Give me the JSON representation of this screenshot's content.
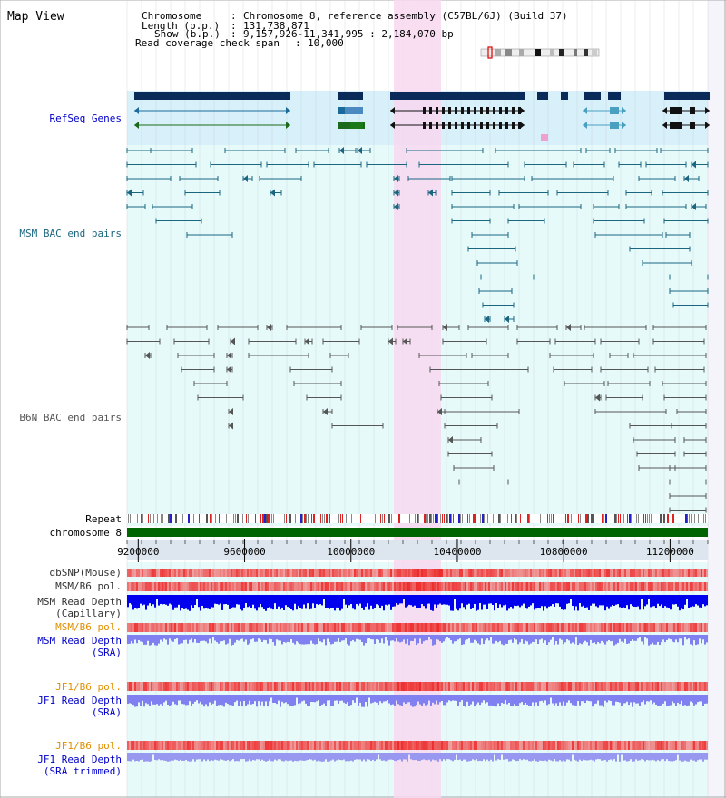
{
  "panel_title": "Map View",
  "header": {
    "lines": [
      {
        "key": "Chromosome",
        "value": "Chromosome 8, reference assembly (C57BL/6J) (Build 37)"
      },
      {
        "key": "Length (b.p.)",
        "value": "131,738,871"
      },
      {
        "key": "Show (b.p.)",
        "value": "9,157,926-11,341,995 : 2,184,070 bp"
      },
      {
        "key": "Read coverage check span",
        "value": "10,000"
      }
    ]
  },
  "tracks": {
    "refseq": {
      "label": "RefSeq Genes",
      "color": "#0000cc"
    },
    "msm_bac": {
      "label": "MSM BAC end pairs",
      "color": "#1a6680"
    },
    "b6n_bac": {
      "label": "B6N BAC end pairs",
      "color": "#555555"
    },
    "repeat": {
      "label": "Repeat"
    },
    "chromosome": {
      "label": "chromosome 8",
      "color": "#006400"
    },
    "dbsnp": {
      "label": "dbSNP(Mouse)"
    },
    "msm_b6_pol_1": {
      "label": "MSM/B6 pol."
    },
    "msm_depth_cap": {
      "label_1": "MSM Read Depth",
      "label_2": "(Capillary)"
    },
    "msm_b6_pol_2": {
      "label": "MSM/B6 pol.",
      "color": "#e09000"
    },
    "msm_depth_sra": {
      "label_1": "MSM Read Depth",
      "label_2": "(SRA)",
      "color": "#0000cc"
    },
    "jf1_b6_pol_1": {
      "label": "JF1/B6 pol.",
      "color": "#e09000"
    },
    "jf1_depth_sra": {
      "label_1": "JF1 Read Depth",
      "label_2": "(SRA)",
      "color": "#0000cc"
    },
    "jf1_b6_pol_2": {
      "label": "JF1/B6 pol.",
      "color": "#e09000"
    },
    "jf1_depth_trim": {
      "label_1": "JF1 Read Depth",
      "label_2": "(SRA trimmed)",
      "color": "#0000cc"
    }
  },
  "axis": {
    "range_bp": [
      9157926,
      11341995
    ],
    "ticks": [
      "9200000",
      "9600000",
      "10000000",
      "10400000",
      "10800000",
      "11200000"
    ],
    "tick_values": [
      9200000,
      9600000,
      10000000,
      10400000,
      10800000,
      11200000
    ]
  },
  "highlight_bp": [
    10160000,
    10340000
  ],
  "colors": {
    "highlight": "#f8d8f0",
    "refseq_bg": "#d8f0fa",
    "region_bg": "#e6fafa",
    "grid": "#c0c8d0",
    "ruler_bg": "#dde6ee",
    "depth_cap": "#0000ee",
    "depth_sra": "#8080f0",
    "pol_red": "#ee3333"
  }
}
